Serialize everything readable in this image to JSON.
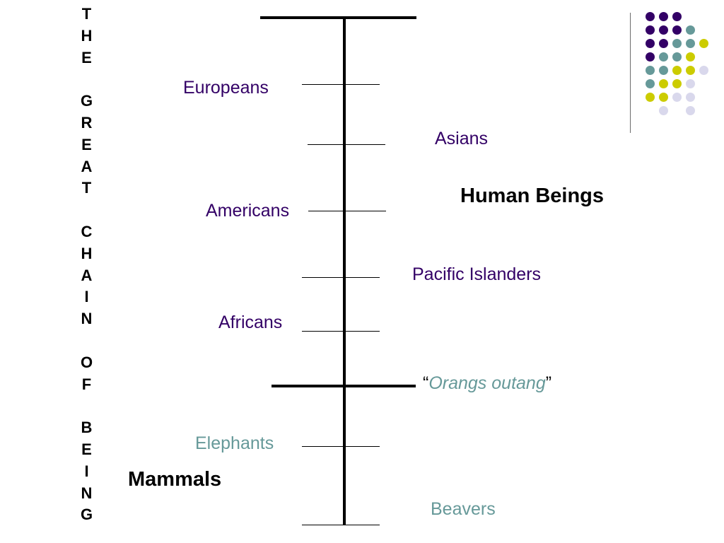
{
  "title": "THE GREAT CHAIN OF BEING",
  "theme": {
    "dark_purple": "#330066",
    "teal": "#669999",
    "yellow_green": "#cccc00",
    "lavender": "#d9d8ec",
    "line": "#000000",
    "separator": "#6b6b6b"
  },
  "groups": {
    "human_beings": "Human Beings",
    "mammals": "Mammals"
  },
  "chain": {
    "europeans": "Europeans",
    "asians": "Asians",
    "americans": "Americans",
    "pacific_islanders": "Pacific Islanders",
    "africans": "Africans",
    "elephants": "Elephants",
    "beavers": "Beavers"
  },
  "orangs": {
    "open_quote": "“",
    "name": "Orangs outang",
    "close_quote": "”"
  }
}
